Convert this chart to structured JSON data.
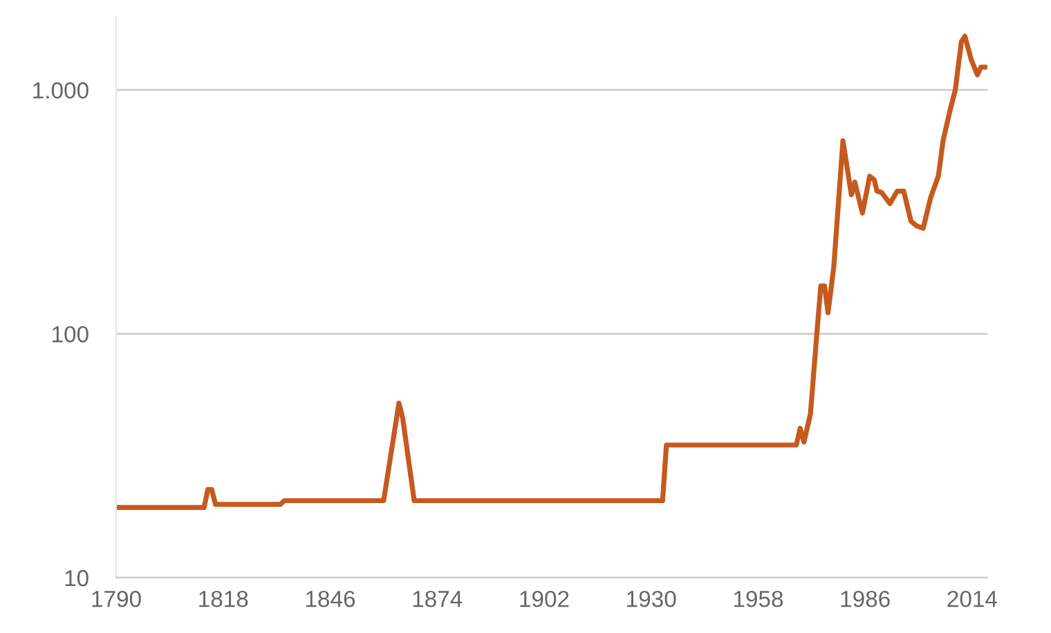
{
  "chart_data": {
    "type": "line",
    "log": "y",
    "grid": "y",
    "marker": "none",
    "line_style": "solid",
    "x": [
      1790,
      1813,
      1814,
      1815,
      1816,
      1817,
      1833,
      1834,
      1860,
      1864,
      1865,
      1868,
      1933,
      1934,
      1968,
      1969,
      1970,
      1971.7,
      1973.2,
      1974.4,
      1975.4,
      1976.3,
      1977.8,
      1980.2,
      1982.4,
      1983.3,
      1985.3,
      1987.2,
      1988.4,
      1989.1,
      1990.3,
      1992.5,
      1994.4,
      1996.1,
      1998,
      1999.5,
      2001.2,
      2003.1,
      2005.2,
      2006.4,
      2008.2,
      2009.6,
      2011.2,
      2012.1,
      2013.8,
      2015.4,
      2016.3,
      2017.5
    ],
    "series": [
      {
        "color": "#c65a1e",
        "values": [
          19.4,
          19.4,
          23,
          23,
          20,
          20,
          20,
          20.7,
          20.7,
          52,
          45,
          20.7,
          20.7,
          35,
          35,
          41,
          36,
          47,
          93,
          157,
          157,
          122,
          188,
          619,
          372,
          419,
          313,
          443,
          428,
          385,
          380,
          342,
          385,
          385,
          290,
          277,
          271,
          360,
          446,
          619,
          822,
          1000,
          1578,
          1663,
          1327,
          1154,
          1241,
          1241
        ]
      }
    ],
    "xlim": [
      1790,
      2018
    ],
    "xticks": [
      1790,
      1818,
      1846,
      1874,
      1902,
      1930,
      1958,
      1986,
      2014
    ],
    "ylim": [
      10,
      2000
    ],
    "yticks": [
      10,
      100,
      {
        "value": 1000,
        "label": "1.000"
      }
    ]
  }
}
